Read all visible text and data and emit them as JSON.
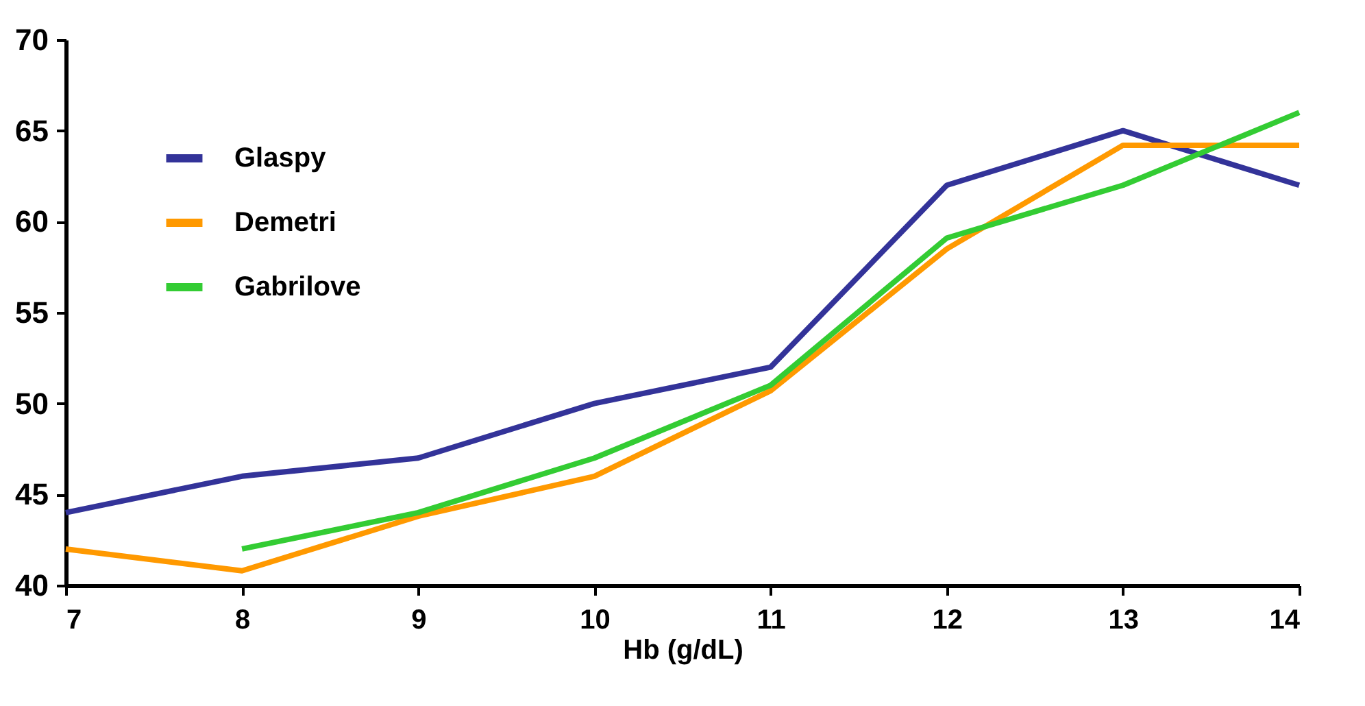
{
  "chart_data": {
    "type": "line",
    "xlabel": "Hb (g/dL)",
    "x": [
      7,
      8,
      9,
      10,
      11,
      12,
      13,
      14
    ],
    "series": [
      {
        "name": "Glaspy",
        "color": "#333399",
        "values": [
          44,
          46,
          47,
          50,
          52,
          62,
          65,
          62
        ]
      },
      {
        "name": "Demetri",
        "color": "#ff9900",
        "values": [
          42,
          40.8,
          43.8,
          46,
          50.7,
          58.5,
          64.2,
          64.2
        ]
      },
      {
        "name": "Gabrilove",
        "color": "#33cc33",
        "values": [
          null,
          42,
          44,
          47,
          51,
          59.1,
          62,
          66
        ]
      }
    ],
    "xlim": [
      7,
      14
    ],
    "xticks": [
      7,
      8,
      9,
      10,
      11,
      12,
      13,
      14
    ],
    "ylim": [
      40,
      70
    ],
    "yticks": [
      40,
      45,
      50,
      55,
      60,
      65,
      70
    ],
    "grid": false,
    "legend": "top left",
    "marker": "none",
    "line_style": "solid"
  }
}
